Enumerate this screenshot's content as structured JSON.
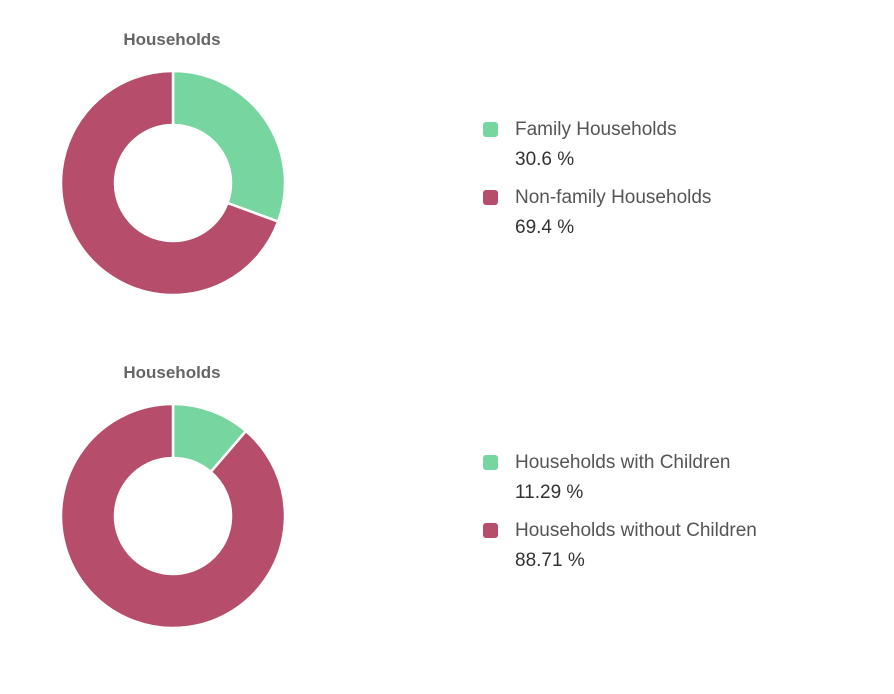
{
  "chart_data": [
    {
      "type": "pie",
      "title": "Households",
      "categories": [
        "Family Households",
        "Non-family Households"
      ],
      "values": [
        30.6,
        69.4
      ],
      "value_labels": [
        "30.6 %",
        "69.4 %"
      ],
      "colors": [
        "#77d6a0",
        "#b64e6b"
      ],
      "legend_position": "right"
    },
    {
      "type": "pie",
      "title": "Households",
      "categories": [
        "Households with Children",
        "Households without Children"
      ],
      "values": [
        11.29,
        88.71
      ],
      "value_labels": [
        "11.29 %",
        "88.71 %"
      ],
      "colors": [
        "#77d6a0",
        "#b64e6b"
      ],
      "legend_position": "right"
    }
  ]
}
